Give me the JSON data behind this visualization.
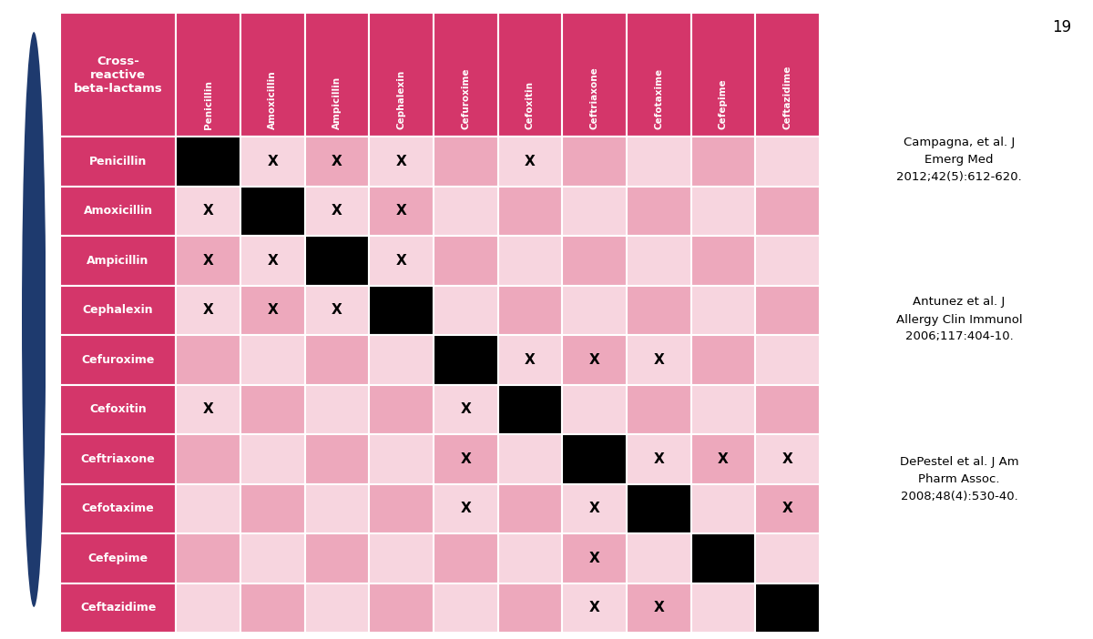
{
  "title_cell": "Cross-\nreactive\nbeta-lactams",
  "col_headers": [
    "Penicillin",
    "Amoxicillin",
    "Ampicillin",
    "Cephalexin",
    "Cefuroxime",
    "Cefoxitin",
    "Ceftriaxone",
    "Cefotaxime",
    "Cefepime",
    "Ceftazidime"
  ],
  "row_headers": [
    "Penicillin",
    "Amoxicillin",
    "Ampicillin",
    "Cephalexin",
    "Cefuroxime",
    "Cefoxitin",
    "Ceftriaxone",
    "Cefotaxime",
    "Cefepime",
    "Ceftazidime"
  ],
  "grid": [
    [
      "B",
      "X",
      "X",
      "X",
      "",
      "X",
      "",
      "",
      "",
      ""
    ],
    [
      "X",
      "B",
      "X",
      "X",
      "",
      "",
      "",
      "",
      "",
      ""
    ],
    [
      "X",
      "X",
      "B",
      "X",
      "",
      "",
      "",
      "",
      "",
      ""
    ],
    [
      "X",
      "X",
      "X",
      "B",
      "",
      "",
      "",
      "",
      "",
      ""
    ],
    [
      "",
      "",
      "",
      "",
      "B",
      "X",
      "X",
      "X",
      "",
      ""
    ],
    [
      "X",
      "",
      "",
      "",
      "X",
      "B",
      "",
      "",
      "",
      ""
    ],
    [
      "",
      "",
      "",
      "",
      "X",
      "",
      "B",
      "X",
      "X",
      "X"
    ],
    [
      "",
      "",
      "",
      "",
      "X",
      "",
      "X",
      "B",
      "",
      "X"
    ],
    [
      "",
      "",
      "",
      "",
      "",
      "",
      "X",
      "",
      "B",
      ""
    ],
    [
      "",
      "",
      "",
      "",
      "",
      "",
      "X",
      "X",
      "",
      "B"
    ]
  ],
  "header_bg": "#D4366A",
  "cell_pink_dark": "#EDA8BC",
  "cell_pink_light": "#F7D5DF",
  "cell_black": "#000000",
  "header_text_color": "#FFFFFF",
  "x_mark_color": "#000000",
  "ref1": "Campagna, et al. J\nEmerg Med\n2012;42(5):612-620.",
  "ref2": "Antunez et al. J\nAllergy Clin Immunol\n2006;117:404-10.",
  "ref3": "DePestel et al. J Am\nPharm Assoc.\n2008;48(4):530-40.",
  "page_number": "19",
  "blue_bar_color": "#1E3A6E",
  "bg_color": "#FFFFFF"
}
